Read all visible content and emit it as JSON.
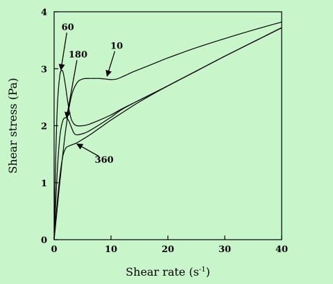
{
  "colors": {
    "background": "#c9f5cb",
    "line": "#000000"
  },
  "chart_data": {
    "type": "line",
    "title": "",
    "xlabel_main": "Shear rate (s",
    "xlabel_sup": "-1",
    "xlabel_close": ")",
    "ylabel": "Shear stress (Pa)",
    "xlim": [
      0,
      40
    ],
    "ylim": [
      0,
      4
    ],
    "xticks": [
      0,
      10,
      20,
      30,
      40
    ],
    "yticks": [
      0,
      1,
      2,
      3,
      4
    ],
    "grid": false,
    "series": [
      {
        "name": "10",
        "x": [
          0,
          0.5,
          1,
          2,
          3,
          4,
          5,
          6,
          7,
          8,
          9,
          10,
          11,
          12,
          14,
          16,
          18,
          20,
          25,
          30,
          35,
          40
        ],
        "y": [
          0,
          0.5,
          1.0,
          1.9,
          2.5,
          2.75,
          2.82,
          2.83,
          2.83,
          2.83,
          2.82,
          2.81,
          2.82,
          2.86,
          2.95,
          3.03,
          3.11,
          3.19,
          3.37,
          3.53,
          3.68,
          3.82
        ]
      },
      {
        "name": "60",
        "x": [
          0,
          0.3,
          0.6,
          1.0,
          1.3,
          1.6,
          2.0,
          2.5,
          3.0,
          3.5,
          4,
          5,
          6,
          8,
          10,
          12,
          15,
          20,
          25,
          30,
          35,
          40
        ],
        "y": [
          0,
          1.5,
          2.4,
          2.88,
          2.97,
          2.93,
          2.7,
          2.35,
          2.12,
          2.03,
          2.0,
          2.0,
          2.02,
          2.1,
          2.19,
          2.3,
          2.45,
          2.7,
          2.96,
          3.22,
          3.47,
          3.72
        ]
      },
      {
        "name": "180",
        "x": [
          0,
          0.5,
          1.0,
          1.5,
          2.0,
          2.5,
          3.0,
          3.5,
          4,
          5,
          6,
          8,
          10,
          12,
          15,
          20,
          25,
          30,
          35,
          40
        ],
        "y": [
          0,
          1.1,
          1.8,
          2.08,
          2.14,
          2.1,
          1.98,
          1.87,
          1.84,
          1.86,
          1.9,
          2.02,
          2.15,
          2.29,
          2.45,
          2.7,
          2.96,
          3.22,
          3.47,
          3.72
        ]
      },
      {
        "name": "360",
        "x": [
          0,
          0.5,
          1.0,
          1.5,
          2.0,
          2.5,
          3,
          4,
          5,
          6,
          8,
          10,
          12,
          15,
          20,
          25,
          30,
          35,
          40
        ],
        "y": [
          0,
          0.6,
          1.1,
          1.45,
          1.6,
          1.64,
          1.66,
          1.7,
          1.76,
          1.82,
          1.96,
          2.1,
          2.23,
          2.42,
          2.7,
          2.96,
          3.22,
          3.47,
          3.72
        ]
      }
    ],
    "annotations": [
      {
        "text": "60",
        "tx": 2.4,
        "ty": 3.68,
        "ax": 1.2,
        "ay": 2.98
      },
      {
        "text": "180",
        "tx": 4.2,
        "ty": 3.2,
        "ax": 2.2,
        "ay": 2.14
      },
      {
        "text": "10",
        "tx": 11.0,
        "ty": 3.35,
        "ax": 9.3,
        "ay": 2.87
      },
      {
        "text": "360",
        "tx": 8.8,
        "ty": 1.35,
        "ax": 4.0,
        "ay": 1.68
      }
    ]
  }
}
